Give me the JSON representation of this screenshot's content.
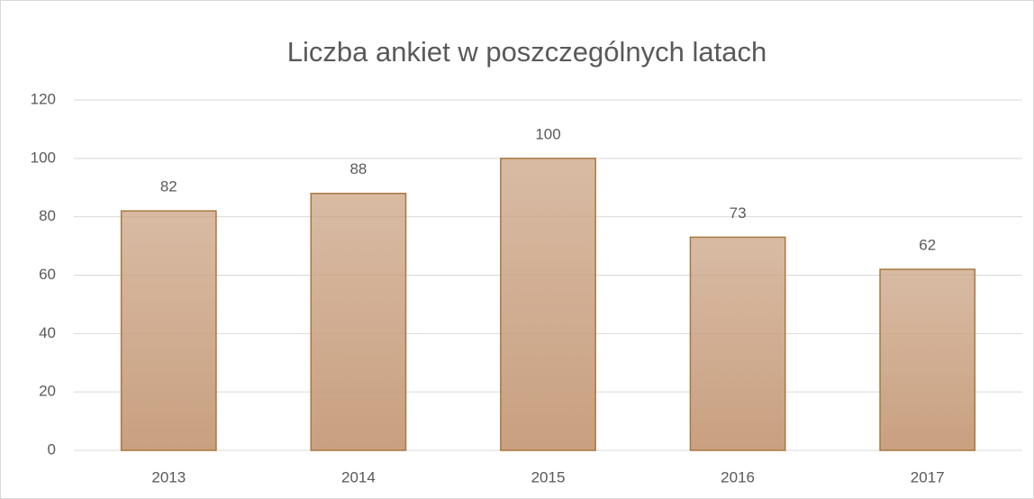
{
  "chart_data": {
    "type": "bar",
    "title": "Liczba ankiet w poszczególnych latach",
    "categories": [
      "2013",
      "2014",
      "2015",
      "2016",
      "2017"
    ],
    "values": [
      82,
      88,
      100,
      73,
      62
    ],
    "color": "#c9a080",
    "edge_color": "#a8773f",
    "ylim": [
      0,
      120
    ],
    "yticks": [
      0,
      20,
      40,
      60,
      80,
      100,
      120
    ],
    "grid": true
  }
}
